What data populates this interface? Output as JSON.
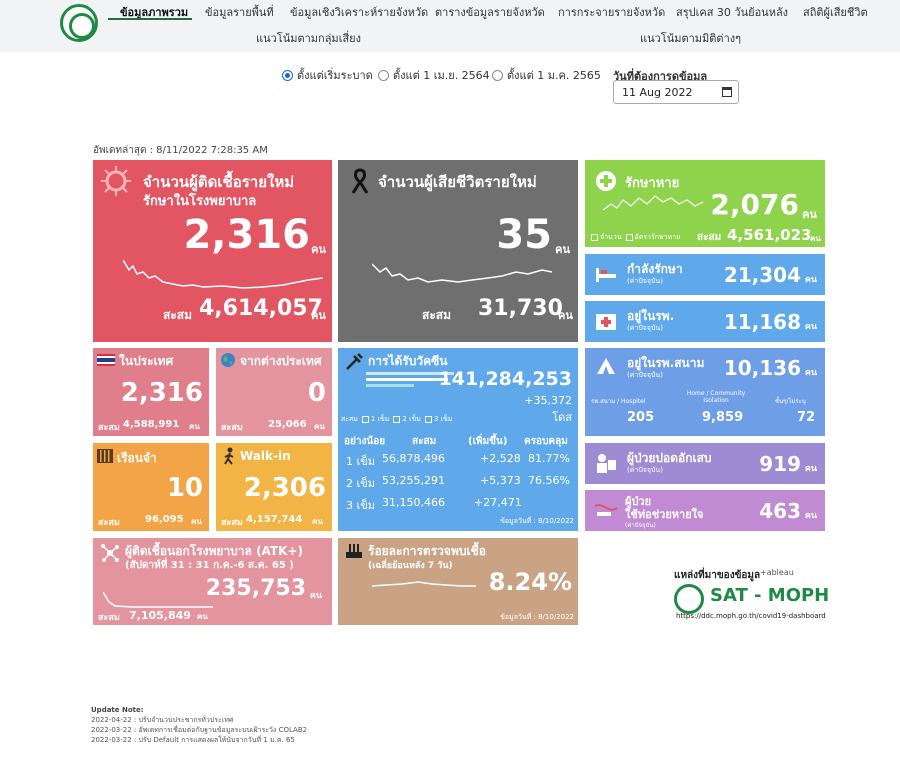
{
  "nav": {
    "items": [
      "ข้อมูลภาพรวม",
      "ข้อมูลรายพื้นที่",
      "ข้อมูลเชิงวิเคราะห์รายจังหวัด",
      "ตารางข้อมูลรายจังหวัด",
      "การกระจายรายจังหวัด",
      "สรุปเคส 30 วันย้อนหลัง",
      "สถิติผู้เสียชีวิต",
      "แนวโน้มตามกลุ่มเสี่ยง",
      "แนวโน้มตามมิติต่างๆ"
    ]
  },
  "filters": {
    "options": [
      "ตั้งแต่เริ่มระบาด",
      "ตั้งแต่ 1 เม.ย. 2564",
      "ตั้งแต่ 1 ม.ค. 2565"
    ],
    "selected": "ตั้งแต่เริ่มระบาด",
    "date_label": "วันที่ต้องการดูข้อมูล",
    "date_value": "11 Aug 2022"
  },
  "updated": "อัพเดทล่าสุด : 8/11/2022 7:28:35 AM",
  "unit": "คน",
  "acc_label": "สะสม",
  "new_cases": {
    "title1": "จำนวนผู้ติดเชื้อรายใหม่",
    "title2": "รักษาในโรงพยาบาล",
    "value": "2,316",
    "total": "4,614,057"
  },
  "deaths": {
    "title": "จำนวนผู้เสียชีวิตรายใหม่",
    "value": "35",
    "total": "31,730"
  },
  "recovered": {
    "title": "รักษาหาย",
    "value": "2,076",
    "total": "4,561,023",
    "legend1": "จำนวน",
    "legend2": "อัตรารักษาหาย"
  },
  "treating": {
    "title": "กำลังรักษา",
    "sub": "(ค่าปัจจุบัน)",
    "value": "21,304"
  },
  "hospital": {
    "title": "อยู่ในรพ.",
    "sub": "(ค่าปัจจุบัน)",
    "value": "11,168"
  },
  "field_hospital": {
    "title": "อยู่ในรพ.สนาม",
    "sub": "(ค่าปัจจุบัน)",
    "value": "10,136",
    "col1_label": "รพ.สนาม / Hospitel",
    "col2_label": "Home / Community Isolation",
    "col3_label": "ชั้นๆ/ไม่ระบุ",
    "col1_value": "205",
    "col2_value": "9,859",
    "col3_value": "72"
  },
  "pneumonia": {
    "title": "ผู้ป่วยปอดอักเสบ",
    "sub": "(ค่าปัจจุบัน)",
    "value": "919"
  },
  "ventilator": {
    "title1": "ผู้ป่วย",
    "title2": "ใช้ท่อช่วยหายใจ",
    "sub": "(ค่าปัจจุบัน)",
    "value": "463"
  },
  "domestic": {
    "title": "ในประเทศ",
    "value": "2,316",
    "total": "4,588,991"
  },
  "abroad": {
    "title": "จากต่างประเทศ",
    "value": "0",
    "total": "25,066"
  },
  "prison": {
    "title": "เรือนจำ",
    "value": "10",
    "total": "96,095"
  },
  "walkin": {
    "title": "Walk-in",
    "value": "2,306",
    "total": "4,157,744"
  },
  "vaccine": {
    "title": "การได้รับวัคซีน",
    "total": "141,284,253",
    "delta": "+35,372",
    "unit": "โดส",
    "legend_prefix": "สะสม",
    "legend": [
      "1 เข็ม",
      "2 เข็ม",
      "3 เข็ม"
    ],
    "headers": [
      "อย่างน้อย",
      "สะสม",
      "(เพิ่มขึ้น)",
      "ครอบคลุม"
    ],
    "rows": [
      {
        "dose": "1 เข็ม",
        "total": "56,878,496",
        "delta": "+2,528",
        "coverage": "81.77%"
      },
      {
        "dose": "2 เข็ม",
        "total": "53,255,291",
        "delta": "+5,373",
        "coverage": "76.56%"
      },
      {
        "dose": "3 เข็ม",
        "total": "31,150,466",
        "delta": "+27,471",
        "coverage": ""
      }
    ],
    "date_note": "ข้อมูลวันที่ : 8/10/2022"
  },
  "atk": {
    "title": "ผู้ติดเชื้อนอกโรงพยาบาล (ATK+)",
    "sub": "(สัปดาห์ที่  31 : 31 ก.ค.-6 ส.ค. 65  )",
    "value": "235,753",
    "total": "7,105,849"
  },
  "positive_rate": {
    "title": "ร้อยละการตรวจพบเชื้อ",
    "sub": "(เฉลี่ยย้อนหลัง 7 วัน)",
    "value": "8.24%",
    "date_note": "ข้อมูลวันที่ : 8/10/2022"
  },
  "source": {
    "label": "แหล่งที่มาของข้อมูล",
    "tableau": "+ableau",
    "name": "SAT - MOPH",
    "url": "https://ddc.moph.go.th/covid19-dashboard"
  },
  "notes": {
    "title": "Update Note:",
    "lines": [
      "2022-04-22 : ปรับจำนวนประชากรทั่วประเทศ",
      "2022-03-22 : อัพเดทการเชื่อมต่อกับฐานข้อมูลระบบเฝ้าระวัง COLAB2",
      "2022-03-22 : ปรับ Default การแสดงผลให้นับจากวันที่ 1 ม.ค. 65"
    ]
  },
  "colors": {
    "nav_bg": "#f2f3f4",
    "brand_green": "#1f8a44",
    "red": "#e25563",
    "gray": "#6f6f6f",
    "green": "#8fd24b",
    "light_blue": "#5fa9ea",
    "blue": "#6d9ee6",
    "purple": "#9d8bd4",
    "violet": "#c08bd2",
    "pink": "#e07e8c",
    "orange": "#f3a447",
    "yellow": "#f2b444",
    "tan": "#c9a384"
  }
}
